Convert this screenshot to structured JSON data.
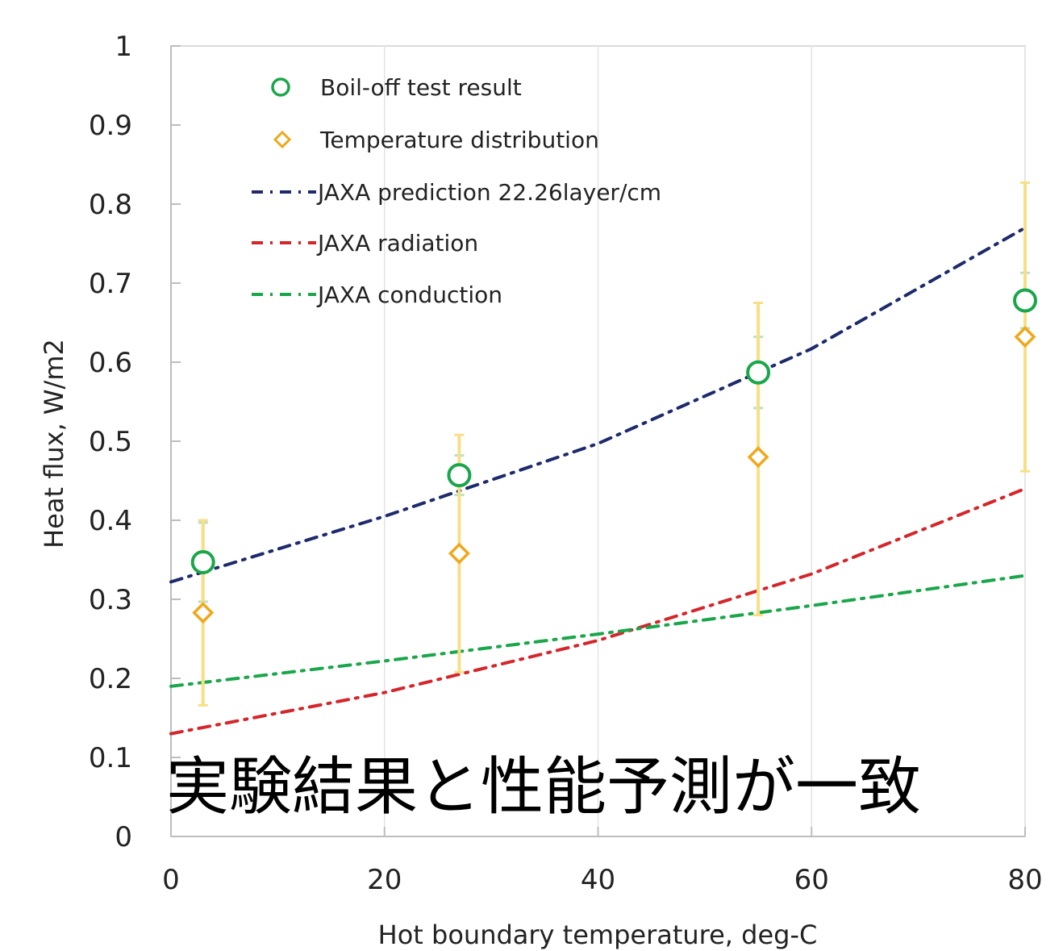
{
  "chart_data": {
    "type": "scatter",
    "xlabel": "Hot boundary temperature, deg-C",
    "ylabel": "Heat flux, W/m2",
    "xlim": [
      0,
      80
    ],
    "ylim": [
      0,
      1
    ],
    "xticks": [
      "0",
      "20",
      "40",
      "60",
      "80"
    ],
    "yticks": [
      "0",
      "0.1",
      "0.2",
      "0.3",
      "0.4",
      "0.5",
      "0.6",
      "0.7",
      "0.8",
      "0.9",
      "1"
    ],
    "grid": "vertical-minor",
    "legend_position": "top-left",
    "annotation": "実験結果と性能予測が一致",
    "series": [
      {
        "name": "Boil-off test result",
        "kind": "points",
        "marker": "circle",
        "color": "#1aa64a",
        "x": [
          3,
          27,
          55,
          80
        ],
        "y": [
          0.347,
          0.457,
          0.587,
          0.678
        ],
        "err_low": [
          0.05,
          0.025,
          0.045,
          0.035
        ],
        "err_high": [
          0.05,
          0.025,
          0.045,
          0.035
        ]
      },
      {
        "name": "Temperature distribution",
        "kind": "points",
        "marker": "diamond",
        "color": "#f0a81a",
        "errcolor": "#f8df86",
        "x": [
          3,
          27,
          55,
          80
        ],
        "y": [
          0.283,
          0.358,
          0.48,
          0.632
        ],
        "err_low": [
          0.117,
          0.15,
          0.2,
          0.17
        ],
        "err_high": [
          0.117,
          0.15,
          0.195,
          0.195
        ]
      },
      {
        "name": "JAXA prediction 22.26layer/cm",
        "kind": "line",
        "color": "#1d2a6b",
        "x": [
          0,
          20,
          40,
          60,
          80
        ],
        "y": [
          0.322,
          0.405,
          0.497,
          0.617,
          0.77
        ]
      },
      {
        "name": "JAXA radiation",
        "kind": "line",
        "color": "#d4262b",
        "x": [
          0,
          20,
          40,
          60,
          80
        ],
        "y": [
          0.13,
          0.182,
          0.248,
          0.332,
          0.44
        ]
      },
      {
        "name": "JAXA conduction",
        "kind": "line",
        "color": "#1aa64a",
        "x": [
          0,
          20,
          40,
          60,
          80
        ],
        "y": [
          0.19,
          0.222,
          0.256,
          0.292,
          0.33
        ]
      }
    ]
  }
}
